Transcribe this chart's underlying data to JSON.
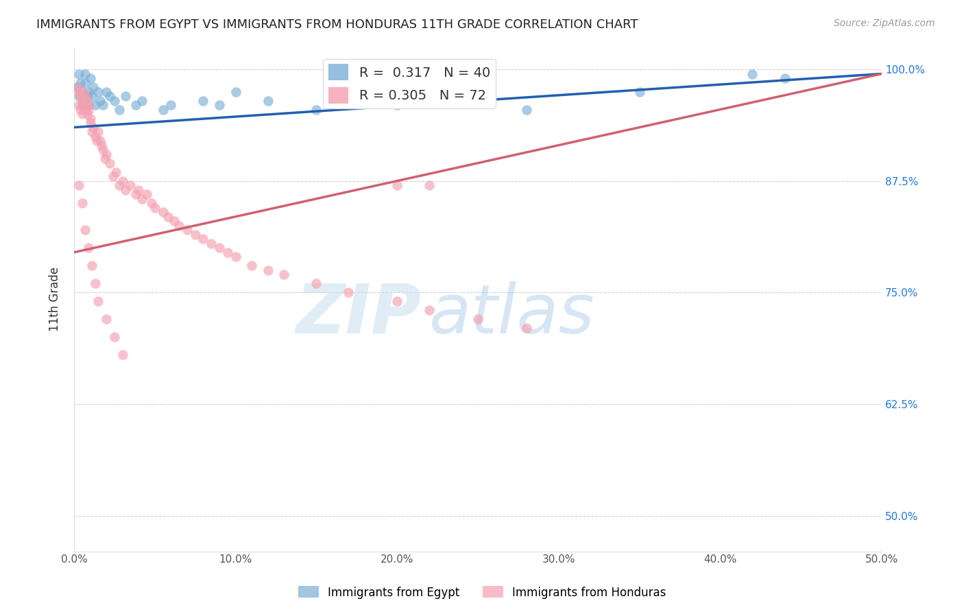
{
  "title": "IMMIGRANTS FROM EGYPT VS IMMIGRANTS FROM HONDURAS 11TH GRADE CORRELATION CHART",
  "source": "Source: ZipAtlas.com",
  "ylabel": "11th Grade",
  "y_ticks_right": [
    "100.0%",
    "87.5%",
    "75.0%",
    "62.5%",
    "50.0%"
  ],
  "y_tick_vals": [
    1.0,
    0.875,
    0.75,
    0.625,
    0.5
  ],
  "xlim": [
    0.0,
    0.5
  ],
  "ylim": [
    0.46,
    1.025
  ],
  "egypt_R": 0.317,
  "egypt_N": 40,
  "honduras_R": 0.305,
  "honduras_N": 72,
  "egypt_color": "#7bafd4",
  "honduras_color": "#f4a0b0",
  "egypt_line_color": "#2060b0",
  "honduras_line_color": "#d06070",
  "legend_label_egypt": "Immigrants from Egypt",
  "legend_label_honduras": "Immigrants from Honduras",
  "egypt_line_x": [
    0.0,
    0.5
  ],
  "egypt_line_y": [
    0.935,
    0.995
  ],
  "honduras_line_x": [
    0.0,
    0.5
  ],
  "honduras_line_y": [
    0.795,
    0.995
  ],
  "egypt_scatter_x": [
    0.002,
    0.003,
    0.003,
    0.004,
    0.005,
    0.005,
    0.006,
    0.007,
    0.007,
    0.008,
    0.009,
    0.009,
    0.01,
    0.011,
    0.012,
    0.013,
    0.015,
    0.016,
    0.018,
    0.02,
    0.022,
    0.025,
    0.028,
    0.032,
    0.038,
    0.042,
    0.055,
    0.06,
    0.08,
    0.09,
    0.1,
    0.12,
    0.15,
    0.17,
    0.2,
    0.24,
    0.28,
    0.35,
    0.42,
    0.44
  ],
  "egypt_scatter_y": [
    0.98,
    0.97,
    0.995,
    0.985,
    0.96,
    0.975,
    0.965,
    0.985,
    0.995,
    0.97,
    0.975,
    0.96,
    0.99,
    0.97,
    0.98,
    0.96,
    0.975,
    0.965,
    0.96,
    0.975,
    0.97,
    0.965,
    0.955,
    0.97,
    0.96,
    0.965,
    0.955,
    0.96,
    0.965,
    0.96,
    0.975,
    0.965,
    0.955,
    0.97,
    0.96,
    0.965,
    0.955,
    0.975,
    0.995,
    0.99
  ],
  "honduras_scatter_x": [
    0.002,
    0.003,
    0.003,
    0.004,
    0.004,
    0.005,
    0.005,
    0.006,
    0.006,
    0.007,
    0.007,
    0.008,
    0.008,
    0.009,
    0.009,
    0.01,
    0.01,
    0.011,
    0.012,
    0.013,
    0.014,
    0.015,
    0.016,
    0.017,
    0.018,
    0.019,
    0.02,
    0.022,
    0.024,
    0.026,
    0.028,
    0.03,
    0.032,
    0.035,
    0.038,
    0.04,
    0.042,
    0.045,
    0.048,
    0.05,
    0.055,
    0.058,
    0.062,
    0.065,
    0.07,
    0.075,
    0.08,
    0.085,
    0.09,
    0.095,
    0.1,
    0.11,
    0.12,
    0.13,
    0.15,
    0.17,
    0.2,
    0.22,
    0.25,
    0.28,
    0.003,
    0.005,
    0.007,
    0.009,
    0.011,
    0.013,
    0.015,
    0.02,
    0.025,
    0.03,
    0.2,
    0.22
  ],
  "honduras_scatter_y": [
    0.98,
    0.96,
    0.975,
    0.97,
    0.955,
    0.965,
    0.95,
    0.975,
    0.96,
    0.97,
    0.955,
    0.965,
    0.95,
    0.96,
    0.955,
    0.94,
    0.945,
    0.93,
    0.935,
    0.925,
    0.92,
    0.93,
    0.92,
    0.915,
    0.91,
    0.9,
    0.905,
    0.895,
    0.88,
    0.885,
    0.87,
    0.875,
    0.865,
    0.87,
    0.86,
    0.865,
    0.855,
    0.86,
    0.85,
    0.845,
    0.84,
    0.835,
    0.83,
    0.825,
    0.82,
    0.815,
    0.81,
    0.805,
    0.8,
    0.795,
    0.79,
    0.78,
    0.775,
    0.77,
    0.76,
    0.75,
    0.74,
    0.73,
    0.72,
    0.71,
    0.87,
    0.85,
    0.82,
    0.8,
    0.78,
    0.76,
    0.74,
    0.72,
    0.7,
    0.68,
    0.87,
    0.87
  ]
}
